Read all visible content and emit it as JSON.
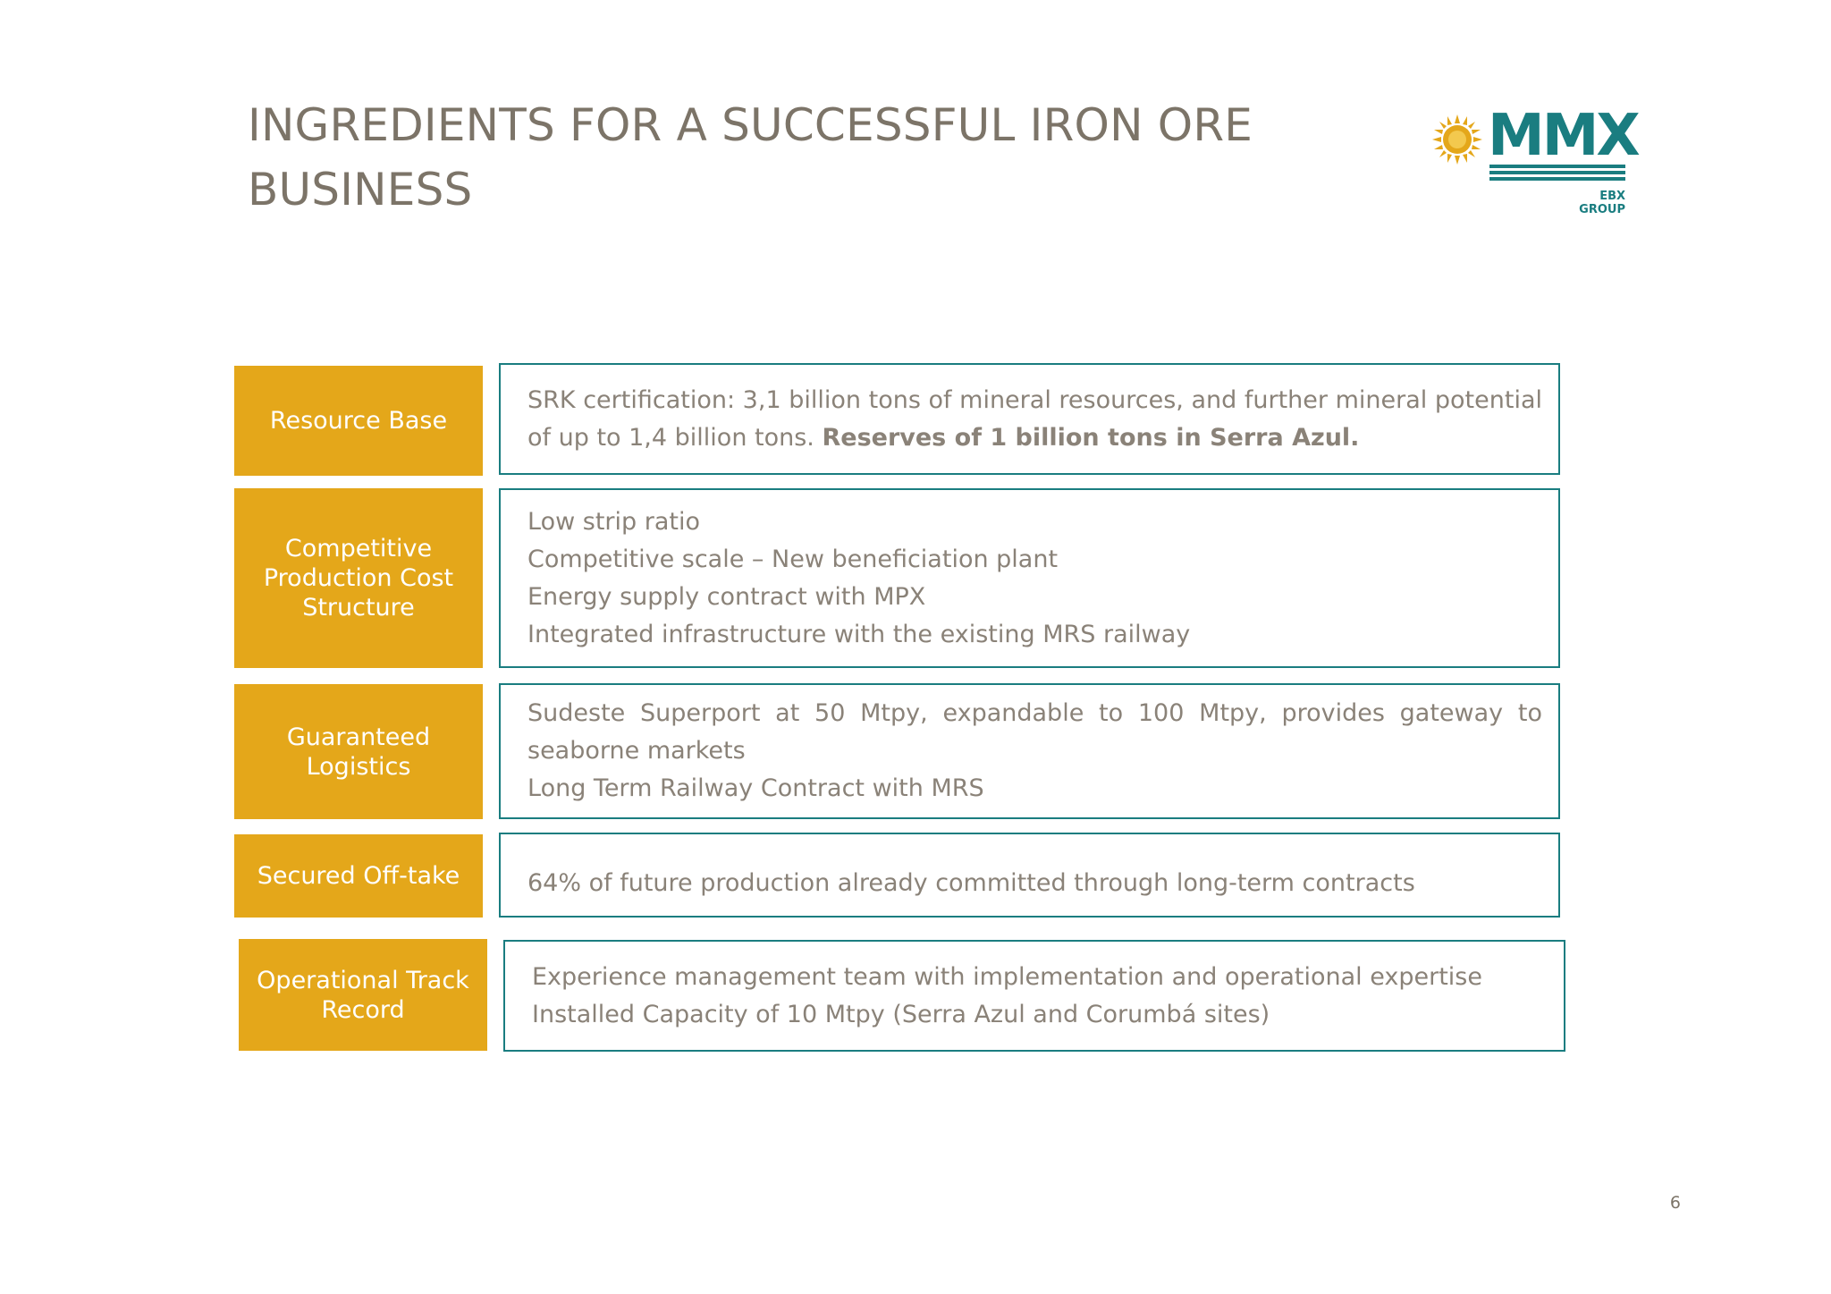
{
  "slide": {
    "title_line1": "INGREDIENTS FOR A SUCCESSFUL IRON ORE",
    "title_line2": "BUSINESS",
    "page_number": "6"
  },
  "logo": {
    "wordmark": "MMX",
    "subtitle": "EBX GROUP",
    "color": "#1a7d80",
    "sun_color": "#e4a71a"
  },
  "colors": {
    "label_bg": "#e4a71a",
    "box_border": "#1a7d80",
    "body_text": "#8a8278",
    "title_text": "#7c7468"
  },
  "rows": [
    {
      "label": "Resource Base",
      "text_normal": "SRK certification: 3,1 billion tons of mineral resources, and further mineral potential of up to 1,4 billion tons. ",
      "text_bold": "Reserves of 1 billion tons in Serra Azul."
    },
    {
      "label": "Competitive Production Cost Structure",
      "lines": [
        "Low strip ratio",
        "Competitive scale – New beneficiation plant",
        "Energy supply contract with MPX",
        "Integrated infrastructure with the existing MRS railway"
      ]
    },
    {
      "label": "Guaranteed Logistics",
      "lines": [
        "Sudeste Superport at 50 Mtpy, expandable to 100 Mtpy, provides gateway to seaborne markets",
        "Long Term Railway Contract with MRS"
      ]
    },
    {
      "label": "Secured Off-take",
      "lines": [
        "64% of future production already committed through long-term contracts"
      ]
    },
    {
      "label": "Operational Track Record",
      "lines": [
        "Experience management team with implementation and operational expertise",
        "Installed Capacity of 10 Mtpy (Serra Azul and Corumbá sites)"
      ]
    }
  ]
}
